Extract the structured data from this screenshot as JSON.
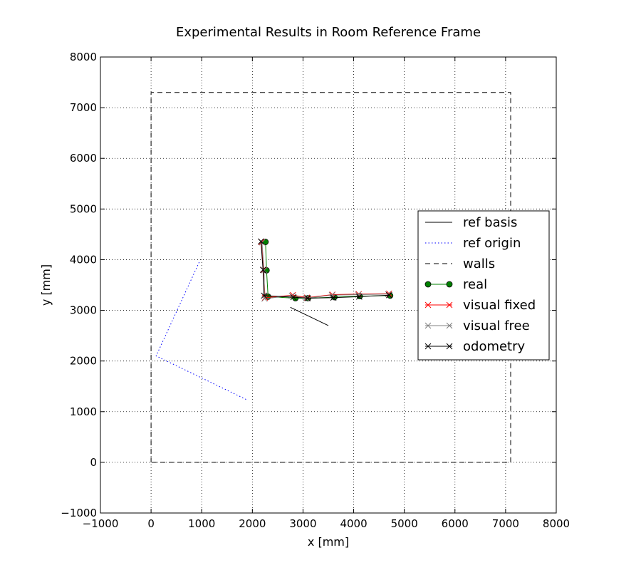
{
  "chart_data": {
    "type": "line",
    "title": "Experimental Results in Room Reference Frame",
    "xlabel": "x [mm]",
    "ylabel": "y [mm]",
    "xlim": [
      -1000,
      8000
    ],
    "ylim": [
      -1000,
      8000
    ],
    "xticks": [
      -1000,
      0,
      1000,
      2000,
      3000,
      4000,
      5000,
      6000,
      7000,
      8000
    ],
    "yticks": [
      -1000,
      0,
      1000,
      2000,
      3000,
      4000,
      5000,
      6000,
      7000,
      8000
    ],
    "xtick_labels": [
      "−1000",
      "0",
      "1000",
      "2000",
      "3000",
      "4000",
      "5000",
      "6000",
      "7000",
      "8000"
    ],
    "ytick_labels": [
      "−1000",
      "0",
      "1000",
      "2000",
      "3000",
      "4000",
      "5000",
      "6000",
      "7000",
      "8000"
    ],
    "grid": true,
    "legend_position": "right",
    "series": [
      {
        "name": "ref basis",
        "style": "solid",
        "color": "#000000",
        "marker": "none",
        "x": [
          2750,
          3500
        ],
        "y": [
          3060,
          2700
        ]
      },
      {
        "name": "ref origin",
        "style": "dotted",
        "color": "#0000ff",
        "marker": "none",
        "x": [
          950,
          100,
          1900
        ],
        "y": [
          3950,
          2100,
          1230
        ]
      },
      {
        "name": "walls",
        "style": "dashed",
        "color": "#000000",
        "marker": "none",
        "x": [
          0,
          0,
          7100,
          7100,
          0
        ],
        "y": [
          0,
          7300,
          7300,
          0,
          0
        ]
      },
      {
        "name": "real",
        "style": "solid",
        "color": "#008000",
        "marker": "circle",
        "x": [
          2260,
          2280,
          2310,
          2850,
          3100,
          3620,
          4120,
          4720
        ],
        "y": [
          4350,
          3790,
          3270,
          3240,
          3240,
          3260,
          3280,
          3290
        ]
      },
      {
        "name": "visual fixed",
        "style": "solid",
        "color": "#ff0000",
        "marker": "x",
        "x": [
          2180,
          2220,
          2250,
          2800,
          3080,
          3580,
          4100,
          4700
        ],
        "y": [
          4350,
          3800,
          3250,
          3300,
          3250,
          3310,
          3320,
          3330
        ]
      },
      {
        "name": "visual free",
        "style": "solid",
        "color": "#808080",
        "marker": "x",
        "x": [
          2190,
          2230,
          2240,
          2780,
          3060,
          3570,
          4090,
          4680
        ],
        "y": [
          4340,
          3790,
          3230,
          3290,
          3240,
          3300,
          3310,
          3320
        ]
      },
      {
        "name": "odometry",
        "style": "solid",
        "color": "#000000",
        "marker": "x",
        "x": [
          2170,
          2210,
          2230,
          2810,
          3090,
          3600,
          4110,
          4700
        ],
        "y": [
          4360,
          3800,
          3290,
          3260,
          3240,
          3250,
          3270,
          3300
        ]
      }
    ]
  }
}
